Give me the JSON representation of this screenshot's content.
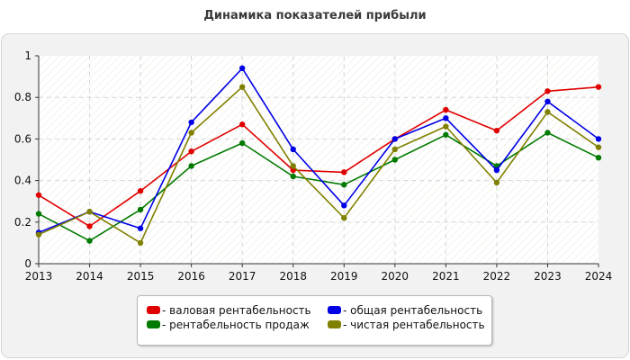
{
  "title": "Динамика показателей прибыли",
  "chart_data": {
    "type": "line",
    "x": [
      "2013",
      "2014",
      "2015",
      "2016",
      "2017",
      "2018",
      "2019",
      "2020",
      "2021",
      "2022",
      "2023",
      "2024"
    ],
    "ylim": [
      0,
      1
    ],
    "yticks": [
      "0",
      "0.2",
      "0.4",
      "0.6",
      "0.8",
      "1"
    ],
    "grid": true,
    "legend_position": "bottom-center",
    "series": [
      {
        "name": "- валовая рентабельность",
        "color": "#e00000",
        "values": [
          0.33,
          0.18,
          0.35,
          0.54,
          0.67,
          0.45,
          0.44,
          0.6,
          0.74,
          0.64,
          0.83,
          0.85
        ]
      },
      {
        "name": "- рентабельность продаж",
        "color": "#007a00",
        "values": [
          0.24,
          0.11,
          0.26,
          0.47,
          0.58,
          0.42,
          0.38,
          0.5,
          0.62,
          0.47,
          0.63,
          0.51
        ]
      },
      {
        "name": "- общая рентабельность",
        "color": "#0000e6",
        "values": [
          0.15,
          0.25,
          0.17,
          0.68,
          0.94,
          0.55,
          0.28,
          0.6,
          0.7,
          0.45,
          0.78,
          0.6
        ]
      },
      {
        "name": "- чистая рентабельность",
        "color": "#808000",
        "values": [
          0.14,
          0.25,
          0.1,
          0.63,
          0.85,
          0.47,
          0.22,
          0.55,
          0.66,
          0.39,
          0.73,
          0.56
        ]
      }
    ]
  }
}
